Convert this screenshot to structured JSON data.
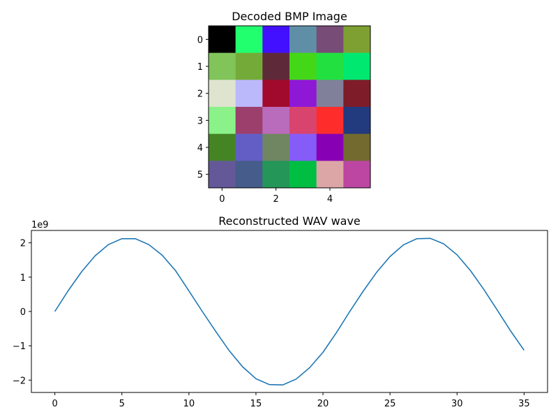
{
  "chart_data": [
    {
      "type": "heatmap",
      "title": "Decoded BMP Image",
      "xlabel": "",
      "ylabel": "",
      "x_ticks": [
        "0",
        "2",
        "4"
      ],
      "y_ticks": [
        "0",
        "1",
        "2",
        "3",
        "4",
        "5"
      ],
      "grid": false,
      "pixels": [
        [
          "#000000",
          "#22ff6e",
          "#4210ff",
          "#5f8fa6",
          "#774c76",
          "#7ea032"
        ],
        [
          "#80c45a",
          "#74ab38",
          "#5e2a3a",
          "#44d718",
          "#22e040",
          "#00e870"
        ],
        [
          "#dee4ce",
          "#bcb8fc",
          "#a10a2c",
          "#8e18d6",
          "#80809a",
          "#7e1c2a"
        ],
        [
          "#8af288",
          "#9c3f6c",
          "#ba6cbc",
          "#d8446e",
          "#ff2c2c",
          "#223a7e"
        ],
        [
          "#448424",
          "#625ec6",
          "#708662",
          "#865cf8",
          "#8800b4",
          "#726a2e"
        ],
        [
          "#645898",
          "#465c8a",
          "#249658",
          "#00be42",
          "#dca6a6",
          "#bc46a2"
        ]
      ]
    },
    {
      "type": "line",
      "title": "Reconstructed WAV wave",
      "xlabel": "",
      "ylabel": "",
      "y_offset_label": "1e9",
      "x_ticks": [
        "0",
        "5",
        "10",
        "15",
        "20",
        "25",
        "30",
        "35"
      ],
      "y_ticks": [
        "−2",
        "−1",
        "0",
        "1",
        "2"
      ],
      "xlim": [
        -1.75,
        36.75
      ],
      "ylim": [
        -2.36,
        2.36
      ],
      "grid": false,
      "color": "#1f77b4",
      "x": [
        0,
        1,
        2,
        3,
        4,
        5,
        6,
        7,
        8,
        9,
        10,
        11,
        12,
        13,
        14,
        15,
        16,
        17,
        18,
        19,
        20,
        21,
        22,
        23,
        24,
        25,
        26,
        27,
        28,
        29,
        30,
        31,
        32,
        33,
        34,
        35
      ],
      "y": [
        0.0,
        0.608,
        1.16,
        1.62,
        1.95,
        2.12,
        2.12,
        1.95,
        1.64,
        1.19,
        0.6,
        0.0,
        -0.58,
        -1.14,
        -1.61,
        -1.96,
        -2.13,
        -2.14,
        -1.97,
        -1.64,
        -1.19,
        -0.62,
        0.0,
        0.59,
        1.14,
        1.6,
        1.94,
        2.12,
        2.13,
        1.97,
        1.65,
        1.19,
        0.64,
        0.04,
        -0.57,
        -1.13
      ]
    }
  ]
}
